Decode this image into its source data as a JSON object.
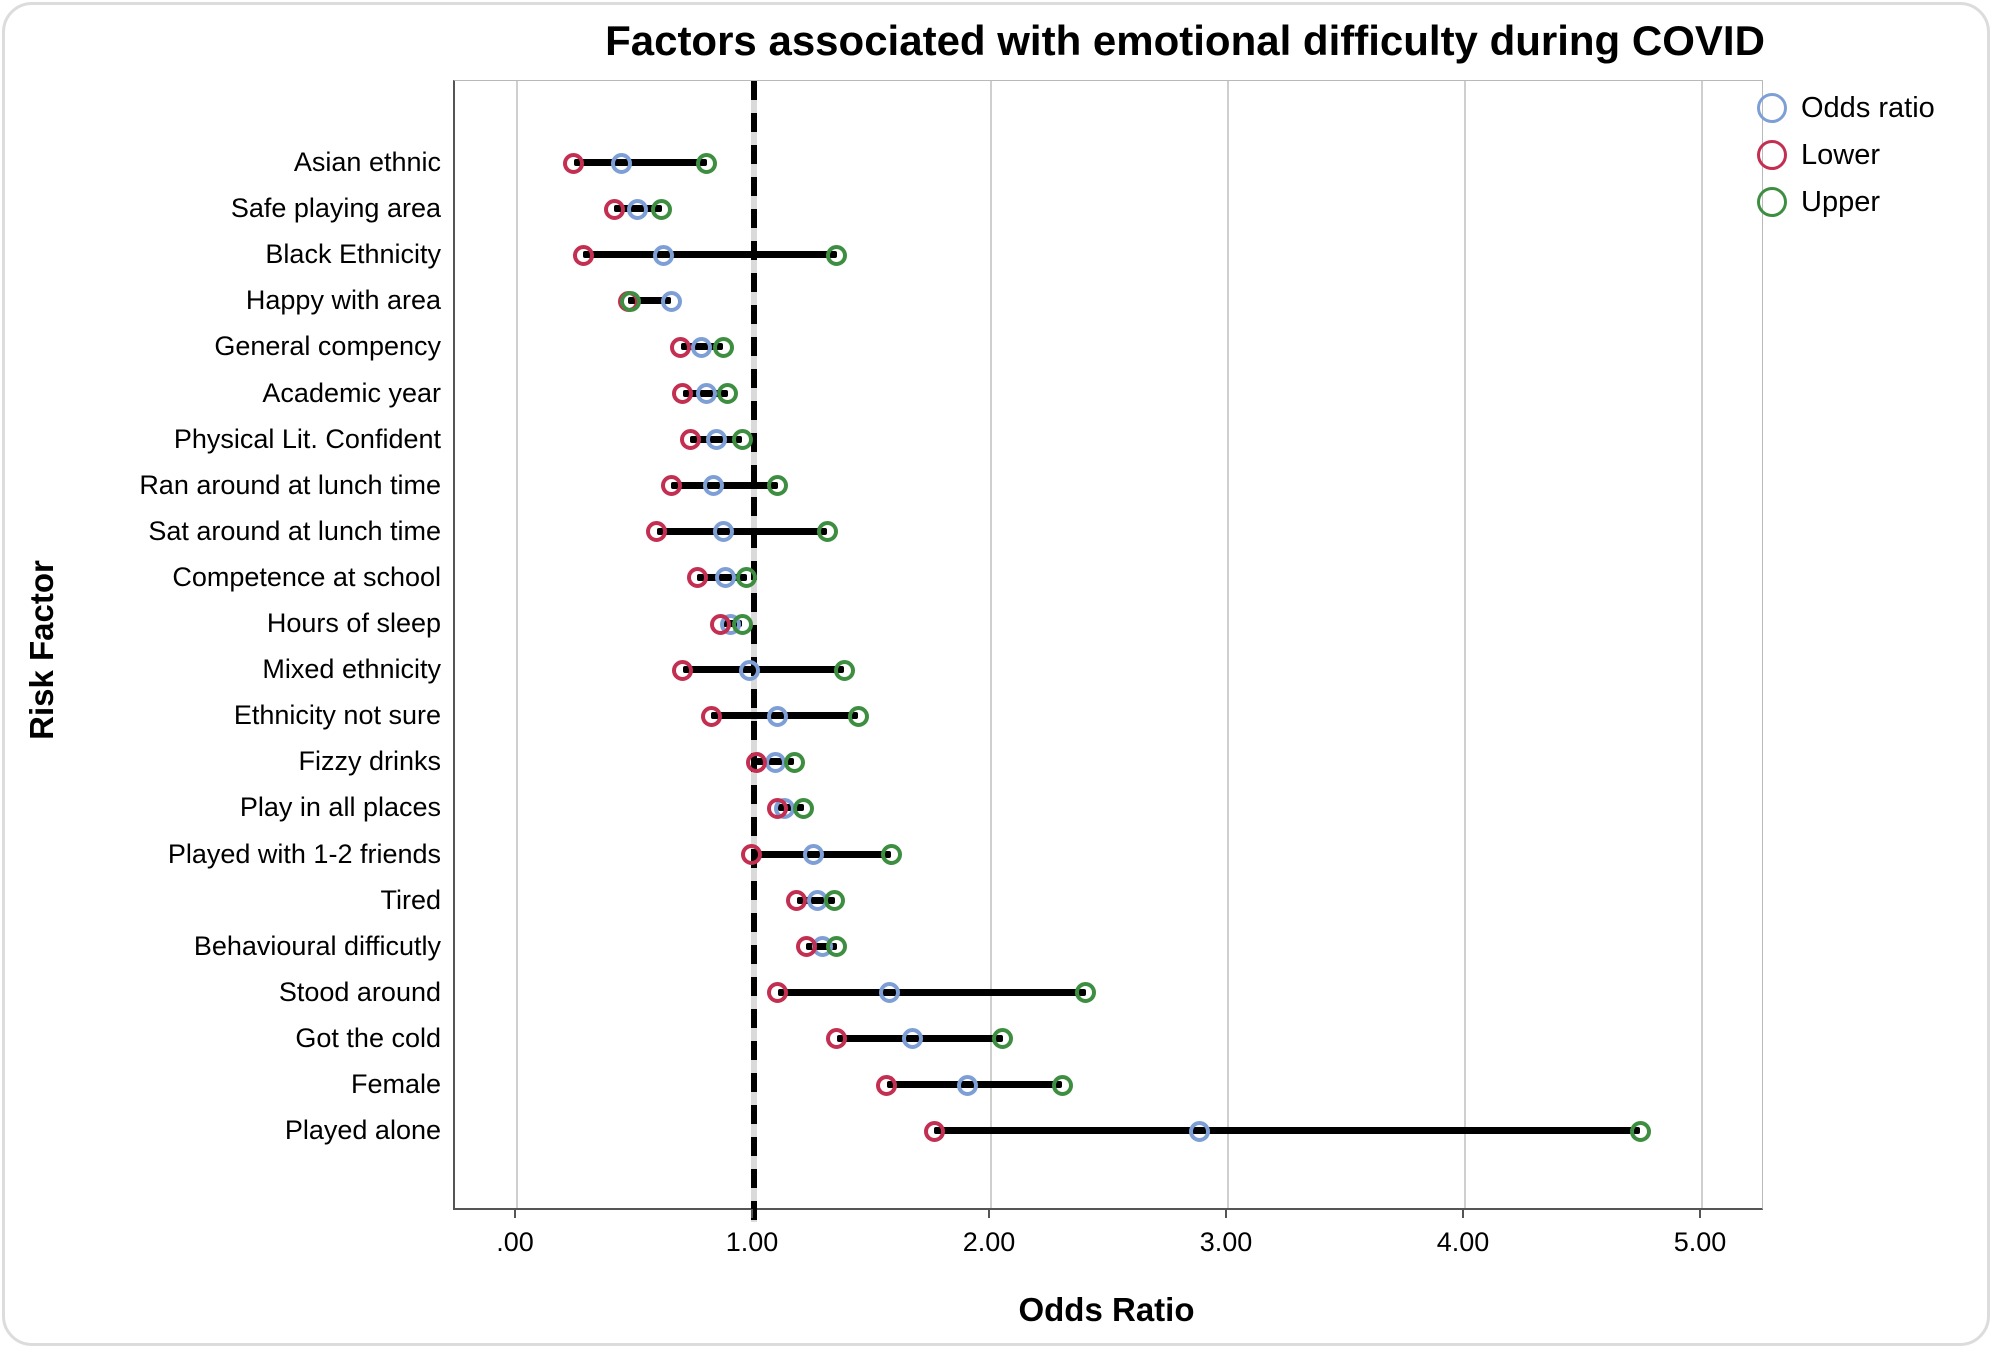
{
  "chart_data": {
    "type": "scatter",
    "subtype": "forest-plot-horizontal-intervals",
    "title": "Factors associated with emotional difficulty during COVID",
    "xlabel": "Odds Ratio",
    "ylabel": "Risk Factor",
    "xlim": [
      -0.26,
      5.25
    ],
    "x_ticks": [
      0,
      1,
      2,
      3,
      4,
      5
    ],
    "x_tick_labels": [
      ".00",
      "1.00",
      "2.00",
      "3.00",
      "4.00",
      "5.00"
    ],
    "reference_line_x": 1.0,
    "grid": "vertical-major",
    "legend_position": "top-right",
    "legend": [
      {
        "name": "Odds ratio",
        "color": "#7d9fd6"
      },
      {
        "name": "Lower",
        "color": "#c22f51"
      },
      {
        "name": "Upper",
        "color": "#3e8e41"
      }
    ],
    "rows": [
      {
        "label": "Asian ethnic",
        "or": 0.44,
        "lower": 0.24,
        "upper": 0.8
      },
      {
        "label": "Safe playing area",
        "or": 0.51,
        "lower": 0.41,
        "upper": 0.61
      },
      {
        "label": "Black Ethnicity",
        "or": 0.62,
        "lower": 0.28,
        "upper": 1.35
      },
      {
        "label": "Happy with area",
        "or": 0.65,
        "lower": 0.47,
        "upper": 0.48
      },
      {
        "label": "General compency",
        "or": 0.78,
        "lower": 0.69,
        "upper": 0.87
      },
      {
        "label": "Academic year",
        "or": 0.8,
        "lower": 0.7,
        "upper": 0.89
      },
      {
        "label": "Physical Lit. Confident",
        "or": 0.84,
        "lower": 0.73,
        "upper": 0.95
      },
      {
        "label": "Ran around at lunch time",
        "or": 0.83,
        "lower": 0.65,
        "upper": 1.1
      },
      {
        "label": "Sat around at lunch time",
        "or": 0.87,
        "lower": 0.59,
        "upper": 1.31
      },
      {
        "label": "Competence at school",
        "or": 0.88,
        "lower": 0.76,
        "upper": 0.97
      },
      {
        "label": "Hours of sleep",
        "or": 0.9,
        "lower": 0.86,
        "upper": 0.95
      },
      {
        "label": "Mixed ethnicity",
        "or": 0.98,
        "lower": 0.7,
        "upper": 1.38
      },
      {
        "label": "Ethnicity not sure",
        "or": 1.1,
        "lower": 0.82,
        "upper": 1.44
      },
      {
        "label": "Fizzy drinks",
        "or": 1.09,
        "lower": 1.01,
        "upper": 1.17
      },
      {
        "label": "Play in all places",
        "or": 1.13,
        "lower": 1.1,
        "upper": 1.21
      },
      {
        "label": "Played with 1-2 friends",
        "or": 1.25,
        "lower": 0.99,
        "upper": 1.58
      },
      {
        "label": "Tired",
        "or": 1.27,
        "lower": 1.18,
        "upper": 1.34
      },
      {
        "label": "Behavioural difficutly",
        "or": 1.29,
        "lower": 1.22,
        "upper": 1.35
      },
      {
        "label": "Stood around",
        "or": 1.57,
        "lower": 1.1,
        "upper": 2.4
      },
      {
        "label": "Got the cold",
        "or": 1.67,
        "lower": 1.35,
        "upper": 2.05
      },
      {
        "label": "Female",
        "or": 1.9,
        "lower": 1.56,
        "upper": 2.3
      },
      {
        "label": "Played alone",
        "or": 2.88,
        "lower": 1.76,
        "upper": 4.74
      }
    ]
  }
}
